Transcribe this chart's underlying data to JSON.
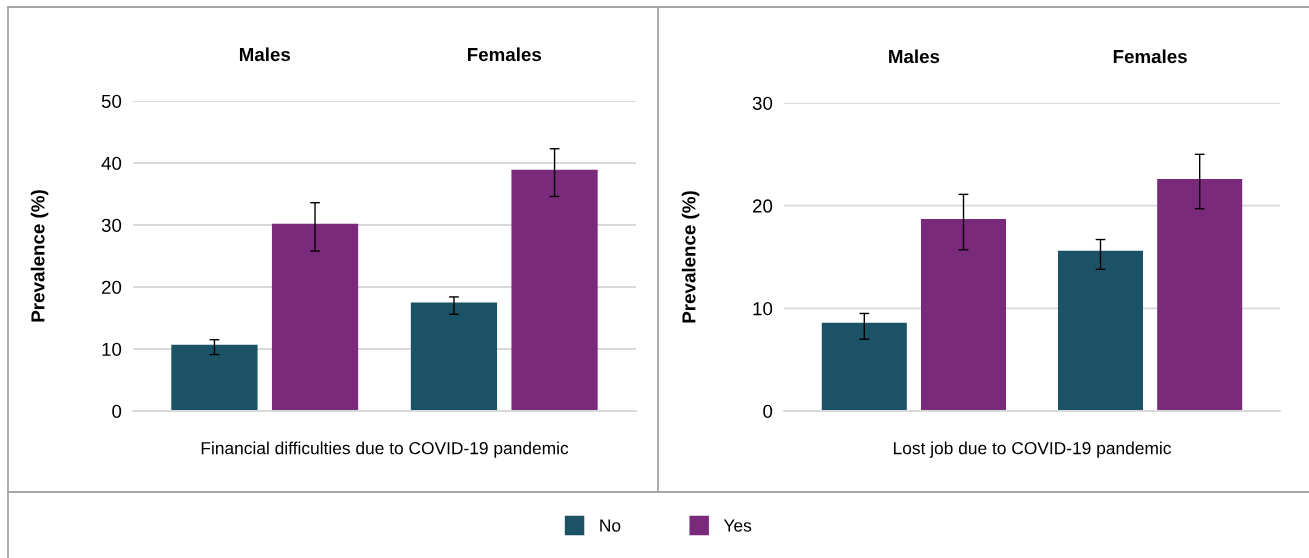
{
  "chart_data": [
    {
      "type": "bar",
      "categories": [
        "Males",
        "Females"
      ],
      "xlabel": "Financial difficulties due to COVID-19 pandemic",
      "ylabel": "Prevalence (%)",
      "ylim": [
        0,
        50
      ],
      "yticks": [
        0,
        10,
        20,
        30,
        40,
        50
      ],
      "grid": "y",
      "legend": "bottom",
      "series": [
        {
          "name": "No",
          "color": "#1b5265",
          "values": [
            10.7,
            17.5
          ],
          "errors": [
            [
              9.1,
              11.5
            ],
            [
              15.6,
              18.4
            ]
          ]
        },
        {
          "name": "Yes",
          "color": "#7a2a7a",
          "values": [
            30.2,
            38.9
          ],
          "errors": [
            [
              25.8,
              33.6
            ],
            [
              34.6,
              42.3
            ]
          ]
        }
      ]
    },
    {
      "type": "bar",
      "categories": [
        "Males",
        "Females"
      ],
      "xlabel": "Lost job due to COVID-19 pandemic",
      "ylabel": "Prevalence (%)",
      "ylim": [
        0,
        30
      ],
      "yticks": [
        0,
        10,
        20,
        30
      ],
      "grid": "y",
      "series": [
        {
          "name": "No",
          "color": "#1b5265",
          "values": [
            8.6,
            15.6
          ],
          "errors": [
            [
              7.0,
              9.5
            ],
            [
              13.8,
              16.7
            ]
          ]
        },
        {
          "name": "Yes",
          "color": "#7a2a7a",
          "values": [
            18.7,
            22.6
          ],
          "errors": [
            [
              15.7,
              21.1
            ],
            [
              19.7,
              25.0
            ]
          ]
        }
      ]
    }
  ]
}
